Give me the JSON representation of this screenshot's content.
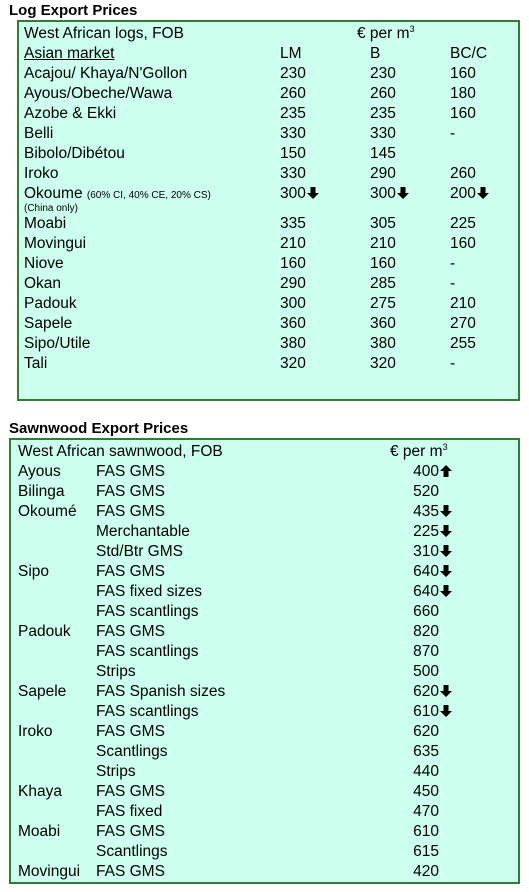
{
  "log": {
    "title": "Log Export Prices",
    "subtitle": "West African logs, FOB",
    "unit_prefix": "€ per m",
    "unit_sup": "3",
    "market_label": "Asian market",
    "columns": [
      "LM",
      "B",
      "BC/C"
    ],
    "rows": [
      {
        "name": "Acajou/ Khaya/N'Gollon",
        "lm": "230",
        "b": "230",
        "bcc": "160"
      },
      {
        "name": "Ayous/Obeche/Wawa",
        "lm": "260",
        "b": "260",
        "bcc": "180"
      },
      {
        "name": "Azobe & Ekki",
        "lm": "235",
        "b": "235",
        "bcc": "160"
      },
      {
        "name": "Belli",
        "lm": "330",
        "b": "330",
        "bcc": "-"
      },
      {
        "name": "Bibolo/Dibétou",
        "lm": "150",
        "b": "145",
        "bcc": ""
      },
      {
        "name": "Iroko",
        "lm": "330",
        "b": "290",
        "bcc": "260"
      },
      {
        "name": "Okoume",
        "note": "(60% CI, 40% CE, 20% CS)",
        "lm": "300",
        "b": "300",
        "bcc": "200",
        "arrow": "down",
        "subnote": "(China only)"
      },
      {
        "name": "Moabi",
        "lm": "335",
        "b": "305",
        "bcc": "225"
      },
      {
        "name": "Movingui",
        "lm": "210",
        "b": "210",
        "bcc": "160"
      },
      {
        "name": "Niove",
        "lm": "160",
        "b": "160",
        "bcc": "-"
      },
      {
        "name": "Okan",
        "lm": "290",
        "b": "285",
        "bcc": "-"
      },
      {
        "name": "Padouk",
        "lm": "300",
        "b": "275",
        "bcc": "210"
      },
      {
        "name": "Sapele",
        "lm": "360",
        "b": "360",
        "bcc": "270"
      },
      {
        "name": "Sipo/Utile",
        "lm": "380",
        "b": "380",
        "bcc": "255"
      },
      {
        "name": "Tali",
        "lm": "320",
        "b": "320",
        "bcc": "-"
      }
    ]
  },
  "sawn": {
    "title": "Sawnwood Export Prices",
    "subtitle": "West African sawnwood, FOB",
    "unit_prefix": "€ per m",
    "unit_sup": "3",
    "rows": [
      {
        "species": "Ayous",
        "grade": "FAS GMS",
        "price": "400",
        "arrow": "up"
      },
      {
        "species": "Bilinga",
        "grade": "FAS GMS",
        "price": "520"
      },
      {
        "species": "Okoumé",
        "grade": "FAS GMS",
        "price": "435",
        "arrow": "down"
      },
      {
        "species": "",
        "grade": "Merchantable",
        "price": "225",
        "arrow": "down"
      },
      {
        "species": "",
        "grade": "Std/Btr GMS",
        "price": "310",
        "arrow": "down"
      },
      {
        "species": "Sipo",
        "grade": "FAS GMS",
        "price": "640",
        "arrow": "down"
      },
      {
        "species": "",
        "grade": "FAS fixed sizes",
        "price": "640",
        "arrow": "down"
      },
      {
        "species": "",
        "grade": "FAS scantlings",
        "price": "660"
      },
      {
        "species": "Padouk",
        "grade": "FAS GMS",
        "price": "820"
      },
      {
        "species": "",
        "grade": "FAS scantlings",
        "price": "870"
      },
      {
        "species": "",
        "grade": "Strips",
        "price": "500"
      },
      {
        "species": "Sapele",
        "grade": "FAS Spanish sizes",
        "price": "620",
        "arrow": "down"
      },
      {
        "species": "",
        "grade": "FAS scantlings",
        "price": "610",
        "arrow": "down"
      },
      {
        "species": "Iroko",
        "grade": "FAS GMS",
        "price": "620"
      },
      {
        "species": "",
        "grade": "Scantlings",
        "price": "635"
      },
      {
        "species": "",
        "grade": "Strips",
        "price": "440"
      },
      {
        "species": "Khaya",
        "grade": "FAS GMS",
        "price": "450"
      },
      {
        "species": "",
        "grade": "FAS fixed",
        "price": "470"
      },
      {
        "species": "Moabi",
        "grade": "FAS GMS",
        "price": "610"
      },
      {
        "species": "",
        "grade": "Scantlings",
        "price": "615"
      },
      {
        "species": "Movingui",
        "grade": "FAS GMS",
        "price": "420"
      }
    ]
  }
}
